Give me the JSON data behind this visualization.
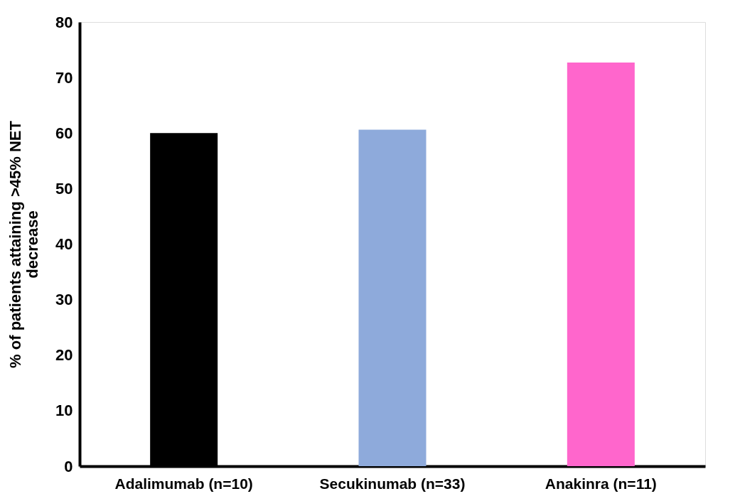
{
  "chart_data": {
    "type": "bar",
    "ylabel": "% of patients attaining >45% NET\ndecrease",
    "categories": [
      "Adalimumab (n=10)",
      "Secukinumab (n=33)",
      "Anakinra (n=11)"
    ],
    "values": [
      60,
      60.6,
      72.7
    ],
    "colors": [
      "#000000",
      "#8eaadb",
      "#ff66cc"
    ],
    "ylim": [
      0,
      80
    ],
    "yticks": [
      0,
      10,
      20,
      30,
      40,
      50,
      60,
      70,
      80
    ]
  }
}
